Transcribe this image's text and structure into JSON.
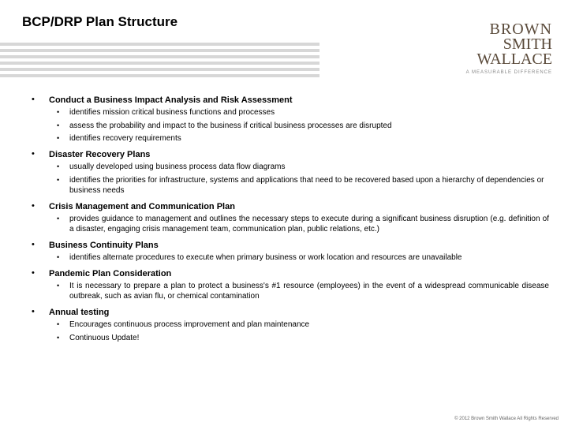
{
  "title": "BCP/DRP Plan Structure",
  "logo": {
    "line1": "BROWN",
    "line2": "SMITH",
    "line3": "WALLACE",
    "tagline": "A MEASURABLE DIFFERENCE"
  },
  "sections": [
    {
      "head": "Conduct a Business Impact Analysis and Risk Assessment",
      "items": [
        "identifies mission critical business functions and processes",
        "assess the probability and impact to the business if critical business processes are disrupted",
        "identifies recovery requirements"
      ],
      "justify": false
    },
    {
      "head": "Disaster Recovery Plans",
      "items": [
        "usually developed using business process data flow diagrams",
        "identifies the priorities for infrastructure, systems and applications that need to be recovered based upon a hierarchy of dependencies or business needs"
      ],
      "justify": false
    },
    {
      "head": "Crisis Management and Communication Plan",
      "items": [
        "provides guidance to management and outlines the necessary steps to execute during a significant business disruption (e.g. definition of a disaster, engaging crisis management team, communication plan, public relations, etc.)"
      ],
      "justify": true
    },
    {
      "head": "Business Continuity Plans",
      "items": [
        "identifies alternate procedures to execute when primary business or work location and resources are unavailable"
      ],
      "justify": true
    },
    {
      "head": "Pandemic Plan Consideration",
      "items": [
        "It is necessary to prepare a plan to protect a business's #1 resource (employees) in the event of a widespread communicable disease outbreak, such as avian flu, or chemical contamination"
      ],
      "justify": true
    },
    {
      "head": "Annual testing",
      "items": [
        "Encourages continuous process improvement and plan maintenance",
        "Continuous Update!"
      ],
      "justify": false
    }
  ],
  "footer": "© 2012 Brown Smith Wallace All Rights Reserved",
  "colors": {
    "stripe": "#d7d7d7",
    "text": "#000000",
    "logo": "#5a4a3a",
    "tagline": "#888888",
    "footer": "#666666",
    "background": "#ffffff"
  }
}
